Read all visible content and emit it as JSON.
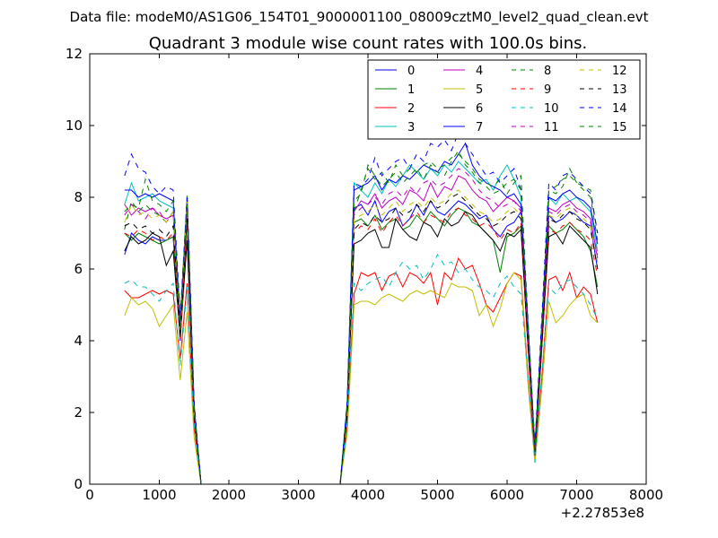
{
  "figure": {
    "suptitle": "Data file: modeM0/AS1G06_154T01_9000001100_08009cztM0_level2_quad_clean.evt"
  },
  "chart_data": {
    "type": "line",
    "title": "Quadrant 3 module wise count rates with 100.0s bins.",
    "xlabel": "",
    "ylabel": "",
    "x_offset_label": "+2.27853e8",
    "xlim": [
      0,
      8000
    ],
    "ylim": [
      0,
      12
    ],
    "xticks": [
      0,
      1000,
      2000,
      3000,
      4000,
      5000,
      6000,
      7000,
      8000
    ],
    "yticks": [
      0,
      2,
      4,
      6,
      8,
      10,
      12
    ],
    "legend_position": "top-right",
    "x": [
      500,
      600,
      700,
      800,
      900,
      1000,
      1100,
      1200,
      1300,
      1400,
      1500,
      1600,
      1700,
      1800,
      1900,
      2000,
      2100,
      2200,
      2300,
      2400,
      2500,
      2600,
      2700,
      2800,
      2900,
      3000,
      3100,
      3200,
      3300,
      3400,
      3500,
      3600,
      3700,
      3800,
      3900,
      4000,
      4100,
      4200,
      4300,
      4400,
      4500,
      4600,
      4700,
      4800,
      4900,
      5000,
      5100,
      5200,
      5300,
      5400,
      5500,
      5600,
      5700,
      5800,
      5900,
      6000,
      6100,
      6200,
      6300,
      6400,
      6500,
      6600,
      6700,
      6800,
      6900,
      7000,
      7100,
      7200,
      7300
    ],
    "series": [
      {
        "name": "0",
        "color": "#0000ff",
        "dash": "solid",
        "values": [
          6.4,
          7.0,
          6.8,
          6.7,
          6.9,
          6.8,
          6.8,
          6.9,
          4.0,
          7.6,
          2.0,
          0,
          0,
          0,
          0,
          0,
          0,
          0,
          0,
          0,
          0,
          0,
          0,
          0,
          0,
          0,
          0,
          0,
          0,
          0,
          0,
          0,
          2.0,
          7.7,
          7.8,
          7.5,
          7.9,
          7.3,
          7.6,
          7.7,
          7.2,
          7.4,
          7.8,
          7.5,
          7.9,
          7.6,
          7.5,
          7.7,
          7.9,
          7.8,
          7.6,
          7.4,
          7.5,
          7.1,
          6.9,
          7.2,
          7.3,
          7.6,
          4.0,
          0.9,
          4.0,
          7.5,
          7.3,
          7.4,
          7.6,
          7.5,
          7.3,
          7.2,
          6.0
        ]
      },
      {
        "name": "1",
        "color": "#008000",
        "dash": "solid",
        "values": [
          7.0,
          6.8,
          7.0,
          6.9,
          6.8,
          6.7,
          6.8,
          6.9,
          4.1,
          7.4,
          2.0,
          0,
          0,
          0,
          0,
          0,
          0,
          0,
          0,
          0,
          0,
          0,
          0,
          0,
          0,
          0,
          0,
          0,
          0,
          0,
          0,
          0,
          2.0,
          7.3,
          7.4,
          7.2,
          7.5,
          7.1,
          7.3,
          7.4,
          7.1,
          7.2,
          7.5,
          7.3,
          7.6,
          7.4,
          7.2,
          7.5,
          7.7,
          7.6,
          7.3,
          7.2,
          7.0,
          6.8,
          5.9,
          6.9,
          7.0,
          7.2,
          3.9,
          0.8,
          3.8,
          7.2,
          7.0,
          7.1,
          7.3,
          7.1,
          6.9,
          6.5,
          5.5
        ]
      },
      {
        "name": "2",
        "color": "#ff0000",
        "dash": "solid",
        "values": [
          5.4,
          5.2,
          5.2,
          5.3,
          5.4,
          5.3,
          5.4,
          5.3,
          3.5,
          5.6,
          1.6,
          0,
          0,
          0,
          0,
          0,
          0,
          0,
          0,
          0,
          0,
          0,
          0,
          0,
          0,
          0,
          0,
          0,
          0,
          0,
          0,
          0,
          1.6,
          5.3,
          5.9,
          5.8,
          5.9,
          5.4,
          5.8,
          5.9,
          5.5,
          5.9,
          5.8,
          5.6,
          5.9,
          5.0,
          5.9,
          5.7,
          6.3,
          6.0,
          6.1,
          5.6,
          5.0,
          4.8,
          5.2,
          5.6,
          5.9,
          5.8,
          3.0,
          0.7,
          3.0,
          5.7,
          5.8,
          5.4,
          5.9,
          5.2,
          5.5,
          5.3,
          4.5
        ]
      },
      {
        "name": "3",
        "color": "#00bfbf",
        "dash": "solid",
        "values": [
          7.8,
          8.4,
          7.9,
          8.0,
          8.1,
          7.9,
          7.8,
          7.7,
          4.6,
          7.9,
          2.2,
          0,
          0,
          0,
          0,
          0,
          0,
          0,
          0,
          0,
          0,
          0,
          0,
          0,
          0,
          0,
          0,
          0,
          0,
          0,
          0,
          0,
          2.3,
          8.4,
          8.2,
          8.0,
          8.4,
          8.1,
          8.5,
          8.3,
          8.6,
          8.9,
          8.7,
          8.5,
          8.8,
          8.6,
          8.9,
          8.7,
          9.0,
          8.8,
          8.6,
          8.4,
          8.5,
          8.2,
          8.6,
          8.9,
          8.5,
          8.0,
          4.5,
          1.0,
          4.4,
          8.0,
          7.8,
          8.1,
          7.9,
          8.0,
          7.8,
          7.6,
          6.5
        ]
      },
      {
        "name": "4",
        "color": "#bf00bf",
        "dash": "solid",
        "values": [
          7.8,
          7.5,
          7.7,
          7.6,
          7.7,
          7.5,
          7.4,
          7.5,
          4.3,
          7.7,
          2.1,
          0,
          0,
          0,
          0,
          0,
          0,
          0,
          0,
          0,
          0,
          0,
          0,
          0,
          0,
          0,
          0,
          0,
          0,
          0,
          0,
          0,
          2.1,
          7.6,
          7.9,
          7.8,
          8.1,
          7.7,
          7.9,
          8.0,
          7.8,
          8.2,
          8.1,
          7.9,
          8.4,
          8.0,
          8.3,
          8.2,
          8.6,
          8.5,
          8.2,
          8.0,
          7.9,
          7.6,
          7.8,
          8.0,
          7.9,
          7.7,
          4.2,
          0.9,
          4.2,
          7.7,
          7.6,
          7.8,
          7.9,
          7.7,
          7.6,
          7.4,
          6.3
        ]
      },
      {
        "name": "5",
        "color": "#bfbf00",
        "dash": "solid",
        "values": [
          4.7,
          5.2,
          5.0,
          5.1,
          4.9,
          4.4,
          4.7,
          5.0,
          2.9,
          4.8,
          1.3,
          0,
          0,
          0,
          0,
          0,
          0,
          0,
          0,
          0,
          0,
          0,
          0,
          0,
          0,
          0,
          0,
          0,
          0,
          0,
          0,
          0,
          1.4,
          5.0,
          5.1,
          5.1,
          5.0,
          5.2,
          5.3,
          5.2,
          5.1,
          5.3,
          5.4,
          5.3,
          5.4,
          5.3,
          5.2,
          5.6,
          5.5,
          5.5,
          5.4,
          4.7,
          5.0,
          4.4,
          4.9,
          5.6,
          5.9,
          5.7,
          2.8,
          0.6,
          2.7,
          5.1,
          4.5,
          4.7,
          5.0,
          5.2,
          5.3,
          4.7,
          4.5
        ]
      },
      {
        "name": "6",
        "color": "#000000",
        "dash": "solid",
        "values": [
          6.5,
          6.9,
          6.7,
          6.8,
          7.0,
          6.9,
          6.1,
          6.5,
          4.1,
          6.8,
          1.9,
          0,
          0,
          0,
          0,
          0,
          0,
          0,
          0,
          0,
          0,
          0,
          0,
          0,
          0,
          0,
          0,
          0,
          0,
          0,
          0,
          0,
          1.9,
          6.7,
          6.8,
          7.0,
          7.1,
          6.6,
          6.6,
          7.4,
          7.1,
          6.9,
          6.8,
          7.3,
          7.2,
          6.9,
          7.4,
          7.2,
          7.3,
          7.6,
          7.5,
          7.2,
          7.0,
          6.8,
          6.5,
          7.0,
          6.9,
          7.1,
          3.8,
          0.8,
          3.9,
          6.9,
          7.0,
          6.7,
          7.2,
          7.0,
          6.8,
          6.6,
          5.3
        ]
      },
      {
        "name": "7",
        "color": "#0000ff",
        "dash": "solid",
        "values": [
          8.2,
          8.2,
          8.0,
          8.1,
          8.0,
          8.1,
          8.0,
          7.9,
          4.5,
          8.0,
          2.2,
          0,
          0,
          0,
          0,
          0,
          0,
          0,
          0,
          0,
          0,
          0,
          0,
          0,
          0,
          0,
          0,
          0,
          0,
          0,
          0,
          0,
          2.2,
          8.2,
          8.3,
          8.4,
          8.6,
          8.2,
          8.5,
          8.4,
          8.6,
          8.5,
          8.7,
          8.9,
          8.8,
          8.7,
          9.0,
          8.9,
          9.2,
          9.5,
          8.9,
          8.6,
          8.4,
          8.3,
          8.2,
          8.0,
          8.1,
          7.8,
          4.4,
          1.0,
          4.5,
          8.0,
          7.9,
          8.1,
          8.2,
          8.0,
          7.9,
          7.7,
          6.7
        ]
      },
      {
        "name": "8",
        "color": "#008000",
        "dash": "dashed",
        "values": [
          7.1,
          7.9,
          7.6,
          7.8,
          7.6,
          7.5,
          7.3,
          7.6,
          4.4,
          8.1,
          2.2,
          0,
          0,
          0,
          0,
          0,
          0,
          0,
          0,
          0,
          0,
          0,
          0,
          0,
          0,
          0,
          0,
          0,
          0,
          0,
          0,
          0,
          2.2,
          7.6,
          8.2,
          8.8,
          8.5,
          8.7,
          8.4,
          8.9,
          8.6,
          8.8,
          8.7,
          8.9,
          9.0,
          8.8,
          8.9,
          9.1,
          9.2,
          9.0,
          8.8,
          8.5,
          8.4,
          8.3,
          8.5,
          8.1,
          8.4,
          8.6,
          4.4,
          1.0,
          4.5,
          8.2,
          8.3,
          8.5,
          8.6,
          8.4,
          8.3,
          8.2,
          7.0
        ]
      },
      {
        "name": "9",
        "color": "#ff0000",
        "dash": "dashed",
        "values": [
          7.0,
          6.9,
          7.1,
          7.0,
          6.8,
          6.9,
          6.8,
          7.0,
          4.0,
          7.3,
          2.0,
          0,
          0,
          0,
          0,
          0,
          0,
          0,
          0,
          0,
          0,
          0,
          0,
          0,
          0,
          0,
          0,
          0,
          0,
          0,
          0,
          0,
          2.0,
          7.0,
          7.2,
          7.1,
          7.4,
          7.0,
          7.3,
          7.5,
          7.2,
          7.4,
          7.6,
          7.3,
          7.5,
          7.4,
          7.3,
          7.6,
          7.7,
          7.5,
          7.4,
          7.2,
          7.3,
          7.1,
          6.8,
          7.1,
          7.0,
          7.3,
          3.9,
          0.8,
          3.9,
          7.1,
          7.0,
          7.2,
          7.3,
          7.1,
          7.0,
          6.8,
          5.8
        ]
      },
      {
        "name": "10",
        "color": "#00bfbf",
        "dash": "dashed",
        "values": [
          5.6,
          5.7,
          5.5,
          5.5,
          5.3,
          5.1,
          5.4,
          5.6,
          3.3,
          5.5,
          1.6,
          0,
          0,
          0,
          0,
          0,
          0,
          0,
          0,
          0,
          0,
          0,
          0,
          0,
          0,
          0,
          0,
          0,
          0,
          0,
          0,
          0,
          1.6,
          5.6,
          5.4,
          5.6,
          5.7,
          5.8,
          5.5,
          5.9,
          6.2,
          6.0,
          6.1,
          5.7,
          6.0,
          6.4,
          6.1,
          6.2,
          5.9,
          6.0,
          5.7,
          5.5,
          5.4,
          5.2,
          5.6,
          5.8,
          5.5,
          5.3,
          3.0,
          0.6,
          3.1,
          5.5,
          5.3,
          5.6,
          5.7,
          5.5,
          5.3,
          5.0,
          4.6
        ]
      },
      {
        "name": "11",
        "color": "#bf00bf",
        "dash": "dashed",
        "values": [
          7.5,
          7.8,
          7.6,
          7.4,
          7.7,
          7.6,
          7.3,
          7.6,
          4.3,
          7.7,
          2.1,
          0,
          0,
          0,
          0,
          0,
          0,
          0,
          0,
          0,
          0,
          0,
          0,
          0,
          0,
          0,
          0,
          0,
          0,
          0,
          0,
          0,
          2.1,
          7.5,
          7.7,
          7.8,
          8.0,
          7.8,
          8.1,
          8.2,
          8.0,
          8.3,
          8.1,
          8.4,
          8.5,
          8.3,
          8.4,
          8.6,
          8.8,
          8.7,
          8.5,
          8.2,
          8.0,
          7.9,
          7.7,
          7.8,
          7.9,
          7.6,
          4.2,
          0.9,
          4.3,
          7.6,
          7.5,
          7.7,
          7.8,
          7.6,
          7.5,
          7.3,
          6.4
        ]
      },
      {
        "name": "12",
        "color": "#bfbf00",
        "dash": "dashed",
        "values": [
          7.3,
          7.8,
          7.5,
          7.6,
          7.4,
          7.5,
          7.3,
          7.6,
          4.3,
          7.9,
          2.1,
          0,
          0,
          0,
          0,
          0,
          0,
          0,
          0,
          0,
          0,
          0,
          0,
          0,
          0,
          0,
          0,
          0,
          0,
          0,
          0,
          0,
          2.1,
          7.4,
          7.5,
          7.6,
          7.8,
          7.5,
          7.7,
          7.9,
          7.6,
          7.8,
          7.9,
          7.7,
          8.0,
          7.8,
          7.9,
          8.1,
          8.2,
          8.0,
          7.8,
          7.6,
          7.5,
          7.3,
          7.4,
          7.6,
          7.7,
          7.5,
          4.1,
          0.9,
          4.2,
          7.5,
          7.4,
          7.6,
          7.7,
          7.5,
          7.4,
          7.2,
          6.2
        ]
      },
      {
        "name": "13",
        "color": "#000000",
        "dash": "dashed",
        "values": [
          7.2,
          7.3,
          7.1,
          7.2,
          7.0,
          7.1,
          6.9,
          7.2,
          4.1,
          7.4,
          2.0,
          0,
          0,
          0,
          0,
          0,
          0,
          0,
          0,
          0,
          0,
          0,
          0,
          0,
          0,
          0,
          0,
          0,
          0,
          0,
          0,
          0,
          2.0,
          7.1,
          7.3,
          7.2,
          7.5,
          7.3,
          7.4,
          7.7,
          7.5,
          7.6,
          7.8,
          7.6,
          7.9,
          7.7,
          7.8,
          8.0,
          8.1,
          7.9,
          7.7,
          7.5,
          7.4,
          7.2,
          7.3,
          7.5,
          7.6,
          7.4,
          4.0,
          0.9,
          4.1,
          7.4,
          7.3,
          7.5,
          7.6,
          7.4,
          7.3,
          7.1,
          6.0
        ]
      },
      {
        "name": "14",
        "color": "#0000ff",
        "dash": "dashed",
        "values": [
          8.6,
          9.2,
          8.8,
          8.7,
          8.3,
          8.1,
          8.3,
          8.2,
          4.7,
          8.0,
          2.3,
          0,
          0,
          0,
          0,
          0,
          0,
          0,
          0,
          0,
          0,
          0,
          0,
          0,
          0,
          0,
          0,
          0,
          0,
          0,
          0,
          0,
          2.3,
          8.4,
          8.3,
          8.5,
          9.1,
          8.6,
          8.8,
          9.0,
          9.1,
          8.8,
          9.2,
          9.0,
          9.5,
          9.4,
          9.6,
          9.3,
          9.8,
          9.5,
          9.2,
          8.9,
          8.6,
          8.7,
          8.4,
          8.6,
          8.8,
          8.2,
          4.6,
          1.1,
          4.7,
          8.4,
          8.2,
          8.6,
          8.7,
          8.5,
          8.3,
          8.1,
          7.0
        ]
      },
      {
        "name": "15",
        "color": "#008000",
        "dash": "dashed",
        "values": [
          7.6,
          7.8,
          7.7,
          8.5,
          7.9,
          7.8,
          7.6,
          7.9,
          4.4,
          7.8,
          2.1,
          0,
          0,
          0,
          0,
          0,
          0,
          0,
          0,
          0,
          0,
          0,
          0,
          0,
          0,
          0,
          0,
          0,
          0,
          0,
          0,
          0,
          2.2,
          7.9,
          8.1,
          8.9,
          8.6,
          8.3,
          8.5,
          8.7,
          8.4,
          8.6,
          8.8,
          8.5,
          8.9,
          8.7,
          8.6,
          9.0,
          9.3,
          8.9,
          8.7,
          8.4,
          8.3,
          8.1,
          8.2,
          8.4,
          8.5,
          8.2,
          4.4,
          1.0,
          4.4,
          8.2,
          8.1,
          8.3,
          8.8,
          8.4,
          8.2,
          8.0,
          6.8
        ]
      }
    ]
  }
}
